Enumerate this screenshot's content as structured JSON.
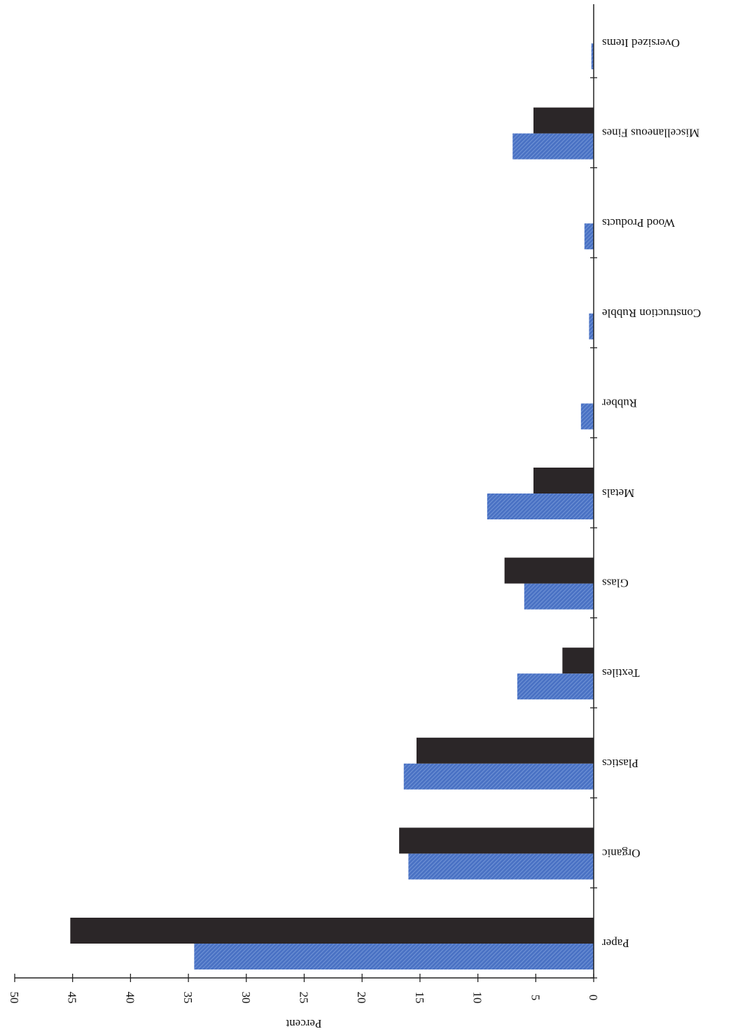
{
  "chart_data": {
    "type": "bar",
    "orientation": "horizontal",
    "image_rotation": "180deg (scanned upside down)",
    "title": "",
    "xlabel": "Percent",
    "ylabel": "",
    "xlim": [
      0,
      50
    ],
    "x_ticks": [
      "0",
      "5",
      "10",
      "15",
      "20",
      "25",
      "30",
      "35",
      "40",
      "45",
      "50"
    ],
    "grid": false,
    "legend": "none",
    "categories": [
      "Paper",
      "Organic",
      "Plastics",
      "Textiles",
      "Glass",
      "Metals",
      "Rubber",
      "Construction Rubble",
      "Wood Products",
      "Miscellaneous Fines",
      "Oversized Items"
    ],
    "series": [
      {
        "values": [
          34.5,
          16.0,
          16.4,
          6.6,
          6.0,
          9.2,
          1.1,
          0.4,
          0.8,
          7.0,
          0.2
        ],
        "color": "#4a72c4",
        "pattern": "hatched"
      },
      {
        "values": [
          45.2,
          16.8,
          15.3,
          2.7,
          7.7,
          5.2,
          0,
          0,
          0,
          5.2,
          0
        ],
        "color": "#2b2628",
        "pattern": "solid"
      }
    ]
  }
}
